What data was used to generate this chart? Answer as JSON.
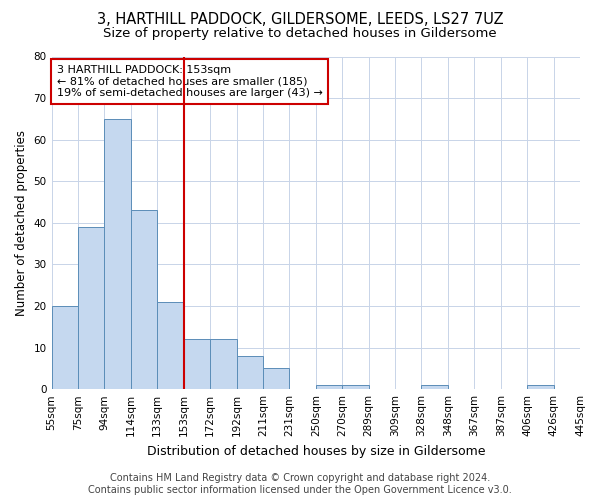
{
  "title": "3, HARTHILL PADDOCK, GILDERSOME, LEEDS, LS27 7UZ",
  "subtitle": "Size of property relative to detached houses in Gildersome",
  "xlabel": "Distribution of detached houses by size in Gildersome",
  "ylabel": "Number of detached properties",
  "footer_line1": "Contains HM Land Registry data © Crown copyright and database right 2024.",
  "footer_line2": "Contains public sector information licensed under the Open Government Licence v3.0.",
  "bin_labels": [
    "55sqm",
    "75sqm",
    "94sqm",
    "114sqm",
    "133sqm",
    "153sqm",
    "172sqm",
    "192sqm",
    "211sqm",
    "231sqm",
    "250sqm",
    "270sqm",
    "289sqm",
    "309sqm",
    "328sqm",
    "348sqm",
    "367sqm",
    "387sqm",
    "406sqm",
    "426sqm",
    "445sqm"
  ],
  "values": [
    20,
    39,
    65,
    43,
    21,
    12,
    12,
    8,
    5,
    0,
    1,
    1,
    0,
    0,
    1,
    0,
    0,
    0,
    1,
    0
  ],
  "bar_color": "#c5d8ef",
  "bar_edge_color": "#5b8db8",
  "highlight_line_index": 5,
  "highlight_color": "#cc0000",
  "annotation_line1": "3 HARTHILL PADDOCK: 153sqm",
  "annotation_line2": "← 81% of detached houses are smaller (185)",
  "annotation_line3": "19% of semi-detached houses are larger (43) →",
  "annotation_box_color": "#cc0000",
  "ylim": [
    0,
    80
  ],
  "yticks": [
    0,
    10,
    20,
    30,
    40,
    50,
    60,
    70,
    80
  ],
  "background_color": "#ffffff",
  "grid_color": "#c8d4e8",
  "title_fontsize": 10.5,
  "subtitle_fontsize": 9.5,
  "ylabel_fontsize": 8.5,
  "xlabel_fontsize": 9,
  "tick_fontsize": 7.5,
  "annotation_fontsize": 8,
  "footer_fontsize": 7
}
